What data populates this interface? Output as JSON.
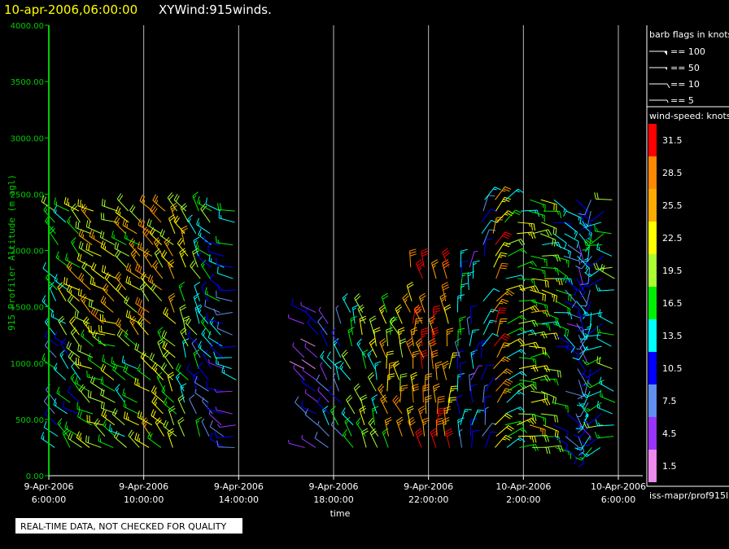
{
  "header": {
    "datetime": "10-apr-2006,06:00:00",
    "product": "XYWind:915winds."
  },
  "chart_data": {
    "type": "scatter",
    "title": "XYWind:915winds.",
    "xlabel": "time",
    "ylabel": "915 Profiler Altitude (m agl)",
    "xlim": [
      6,
      30
    ],
    "ylim": [
      0,
      4000
    ],
    "grid": true,
    "y_ticks": [
      "0.00",
      "500.00",
      "1000.00",
      "1500.00",
      "2000.00",
      "2500.00",
      "3000.00",
      "3500.00",
      "4000.00"
    ],
    "x_ticks": [
      {
        "line1": "9-Apr-2006",
        "line2": "6:00:00"
      },
      {
        "line1": "9-Apr-2006",
        "line2": "10:00:00"
      },
      {
        "line1": "9-Apr-2006",
        "line2": "14:00:00"
      },
      {
        "line1": "9-Apr-2006",
        "line2": "18:00:00"
      },
      {
        "line1": "9-Apr-2006",
        "line2": "22:00:00"
      },
      {
        "line1": "10-Apr-2006",
        "line2": "2:00:00"
      },
      {
        "line1": "10-Apr-2006",
        "line2": "6:00:00"
      }
    ],
    "profile_times_hr": [
      6.3,
      6.8,
      7.3,
      7.8,
      8.3,
      8.8,
      9.3,
      9.8,
      10.3,
      10.8,
      11.3,
      11.8,
      12.3,
      12.8,
      13.3,
      13.8,
      16.8,
      17.3,
      17.8,
      18.3,
      18.8,
      19.3,
      19.8,
      20.3,
      20.8,
      21.3,
      21.8,
      22.3,
      22.8,
      23.3,
      23.8,
      24.3,
      24.8,
      25.3,
      25.8,
      26.3,
      26.8,
      27.3,
      27.8,
      28.3,
      28.8,
      29.3,
      29.8
    ],
    "gate_altitudes_m": [
      250,
      350,
      450,
      550,
      650,
      750,
      850,
      950,
      1050,
      1150,
      1250,
      1350,
      1450,
      1550,
      1650,
      1750,
      1850,
      1950,
      2050,
      2150,
      2250,
      2350,
      2450
    ],
    "barb_speed_by_profile_kt": [
      12,
      14,
      16,
      20,
      21,
      19,
      17,
      18,
      21,
      20,
      18,
      16,
      12,
      10,
      8,
      9,
      5,
      6,
      8,
      11,
      16,
      18,
      19,
      21,
      24,
      27,
      29,
      30,
      27,
      12,
      10,
      11,
      26,
      17,
      19,
      20,
      18,
      14,
      10,
      9,
      11,
      15,
      16
    ],
    "barb_direction_by_profile_deg": [
      320,
      315,
      310,
      305,
      300,
      300,
      305,
      310,
      315,
      320,
      325,
      330,
      330,
      320,
      300,
      280,
      300,
      310,
      320,
      330,
      335,
      340,
      340,
      345,
      345,
      350,
      350,
      355,
      355,
      0,
      10,
      20,
      30,
      60,
      80,
      90,
      100,
      110,
      120,
      150,
      200,
      250,
      280
    ]
  },
  "barb_legend": {
    "title": "barb flags in knots",
    "items": [
      {
        "label": "== 100"
      },
      {
        "label": "== 50"
      },
      {
        "label": "== 10"
      },
      {
        "label": "== 5"
      }
    ]
  },
  "speed_legend": {
    "title": "wind-speed: knots",
    "labels": [
      "31.5",
      "28.5",
      "25.5",
      "22.5",
      "19.5",
      "16.5",
      "13.5",
      "10.5",
      "7.5",
      "4.5",
      "1.5"
    ],
    "colors": [
      "#ff0000",
      "#ff8800",
      "#ffaa00",
      "#ffff00",
      "#aaff33",
      "#00ee00",
      "#00ffff",
      "#0000ff",
      "#5f8ff0",
      "#9933ff",
      "#ee88ee"
    ]
  },
  "footer": {
    "source": "iss-mapr/prof915l",
    "quality_note": "REAL-TIME DATA, NOT CHECKED FOR QUALITY"
  }
}
